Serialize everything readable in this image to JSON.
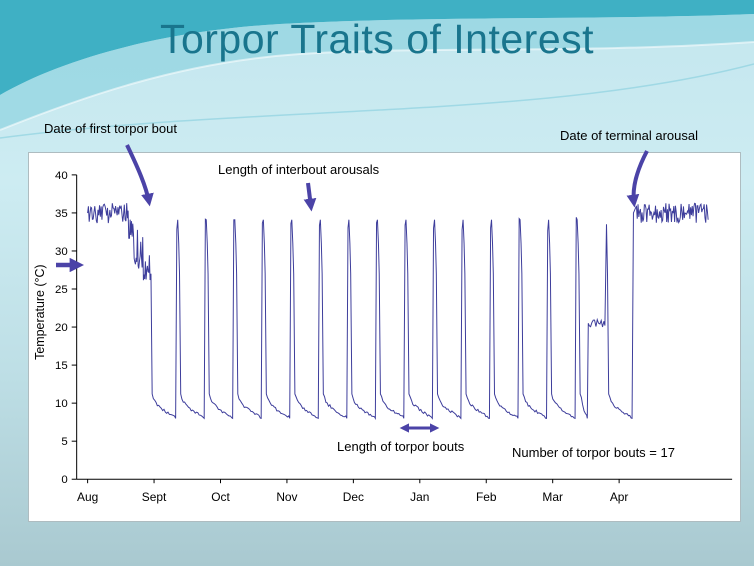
{
  "slide": {
    "title": "Torpor Traits of Interest"
  },
  "chart_data": {
    "type": "line",
    "title": "Torpor Traits of Interest",
    "ylabel": "Temperature (°C)",
    "ylim": [
      0,
      40
    ],
    "y_ticks": [
      0,
      5,
      10,
      15,
      20,
      25,
      30,
      35,
      40
    ],
    "x_tick_labels": [
      "Aug",
      "Sept",
      "Oct",
      "Nov",
      "Dec",
      "Jan",
      "Feb",
      "Mar",
      "Apr"
    ],
    "line_color": "#3d3d9b",
    "arrow_color": "#4b43a7",
    "euthermic_temp_c": 35,
    "torpor_temp_c": 8,
    "arousal_peak_temp_c": 33.5,
    "pre_hibernation_decline_low_c": 25,
    "terminal_plateau_temp_c": 20.5,
    "num_torpor_bouts": 17,
    "first_torpor_bout_month_x": 0.95,
    "terminal_arousal_month_x": 8.25,
    "series_end_month_x": 9.35,
    "annotations": {
      "first_bout": "Date of first torpor bout",
      "interbout_arousals": "Length of interbout arousals",
      "terminal_arousal": "Date of terminal arousal",
      "torpor_bout_length": "Length of torpor bouts",
      "bout_count": "Number of torpor bouts = 17"
    }
  }
}
